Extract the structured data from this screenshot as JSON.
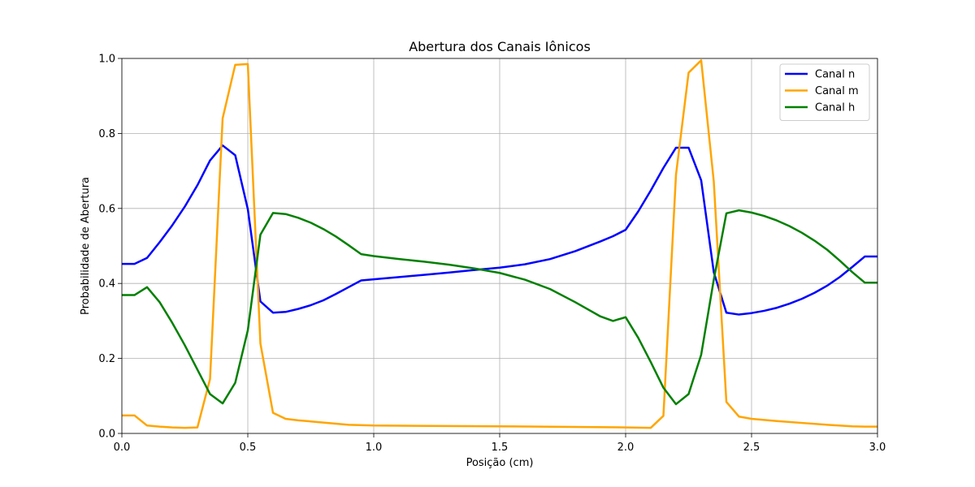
{
  "chart_data": {
    "type": "line",
    "title": "Abertura dos Canais Iônicos",
    "xlabel": "Posição (cm)",
    "ylabel": "Probabilidade de Abertura",
    "xlim": [
      0.0,
      3.0
    ],
    "ylim": [
      0.0,
      1.0
    ],
    "xticks": [
      "0.0",
      "0.5",
      "1.0",
      "1.5",
      "2.0",
      "2.5",
      "3.0"
    ],
    "xtick_values": [
      0.0,
      0.5,
      1.0,
      1.5,
      2.0,
      2.5,
      3.0
    ],
    "yticks": [
      "0.0",
      "0.2",
      "0.4",
      "0.6",
      "0.8",
      "1.0"
    ],
    "ytick_values": [
      0.0,
      0.2,
      0.4,
      0.6,
      0.8,
      1.0
    ],
    "grid": true,
    "legend_position": "top-right",
    "series": [
      {
        "name": "Canal n",
        "color": "#0000ff",
        "x": [
          0,
          0.05,
          0.1,
          0.15,
          0.2,
          0.25,
          0.3,
          0.35,
          0.4,
          0.45,
          0.5,
          0.55,
          0.6,
          0.65,
          0.7,
          0.75,
          0.8,
          0.85,
          0.9,
          0.95,
          1.0,
          1.1,
          1.2,
          1.3,
          1.4,
          1.5,
          1.6,
          1.7,
          1.8,
          1.9,
          1.95,
          2.0,
          2.05,
          2.1,
          2.15,
          2.2,
          2.25,
          2.3,
          2.35,
          2.4,
          2.45,
          2.5,
          2.55,
          2.6,
          2.65,
          2.7,
          2.75,
          2.8,
          2.85,
          2.9,
          2.95,
          3.0
        ],
        "y": [
          0.452,
          0.452,
          0.468,
          0.51,
          0.555,
          0.605,
          0.662,
          0.728,
          0.768,
          0.742,
          0.598,
          0.352,
          0.322,
          0.324,
          0.332,
          0.342,
          0.355,
          0.372,
          0.39,
          0.408,
          0.411,
          0.417,
          0.423,
          0.429,
          0.436,
          0.442,
          0.451,
          0.465,
          0.486,
          0.512,
          0.526,
          0.543,
          0.592,
          0.648,
          0.708,
          0.762,
          0.762,
          0.675,
          0.43,
          0.322,
          0.317,
          0.321,
          0.327,
          0.335,
          0.346,
          0.359,
          0.375,
          0.394,
          0.417,
          0.444,
          0.472,
          0.472
        ]
      },
      {
        "name": "Canal m",
        "color": "#ffa500",
        "x": [
          0,
          0.05,
          0.1,
          0.15,
          0.2,
          0.25,
          0.3,
          0.35,
          0.4,
          0.45,
          0.5,
          0.55,
          0.6,
          0.65,
          0.7,
          0.8,
          0.9,
          1.0,
          1.5,
          2.0,
          2.1,
          2.15,
          2.2,
          2.25,
          2.3,
          2.35,
          2.4,
          2.45,
          2.5,
          2.6,
          2.7,
          2.8,
          2.9,
          2.95,
          3.0
        ],
        "y": [
          0.048,
          0.048,
          0.021,
          0.018,
          0.016,
          0.015,
          0.016,
          0.145,
          0.84,
          0.983,
          0.985,
          0.24,
          0.055,
          0.039,
          0.035,
          0.029,
          0.023,
          0.021,
          0.019,
          0.016,
          0.015,
          0.047,
          0.69,
          0.962,
          0.995,
          0.672,
          0.084,
          0.045,
          0.039,
          0.033,
          0.028,
          0.023,
          0.019,
          0.018,
          0.018
        ]
      },
      {
        "name": "Canal h",
        "color": "#008000",
        "x": [
          0,
          0.05,
          0.1,
          0.15,
          0.2,
          0.25,
          0.3,
          0.35,
          0.4,
          0.45,
          0.5,
          0.55,
          0.6,
          0.65,
          0.7,
          0.75,
          0.8,
          0.85,
          0.9,
          0.95,
          1.0,
          1.1,
          1.2,
          1.3,
          1.4,
          1.5,
          1.6,
          1.7,
          1.8,
          1.9,
          1.95,
          2.0,
          2.05,
          2.1,
          2.15,
          2.2,
          2.25,
          2.3,
          2.35,
          2.4,
          2.45,
          2.5,
          2.55,
          2.6,
          2.65,
          2.7,
          2.75,
          2.8,
          2.85,
          2.9,
          2.95,
          3.0
        ],
        "y": [
          0.369,
          0.369,
          0.39,
          0.35,
          0.295,
          0.235,
          0.17,
          0.105,
          0.08,
          0.135,
          0.275,
          0.53,
          0.588,
          0.585,
          0.575,
          0.562,
          0.545,
          0.525,
          0.502,
          0.478,
          0.473,
          0.465,
          0.458,
          0.45,
          0.44,
          0.428,
          0.41,
          0.385,
          0.35,
          0.312,
          0.3,
          0.31,
          0.255,
          0.19,
          0.122,
          0.078,
          0.105,
          0.21,
          0.41,
          0.587,
          0.595,
          0.589,
          0.58,
          0.568,
          0.553,
          0.535,
          0.514,
          0.49,
          0.461,
          0.43,
          0.402,
          0.402
        ]
      }
    ]
  }
}
